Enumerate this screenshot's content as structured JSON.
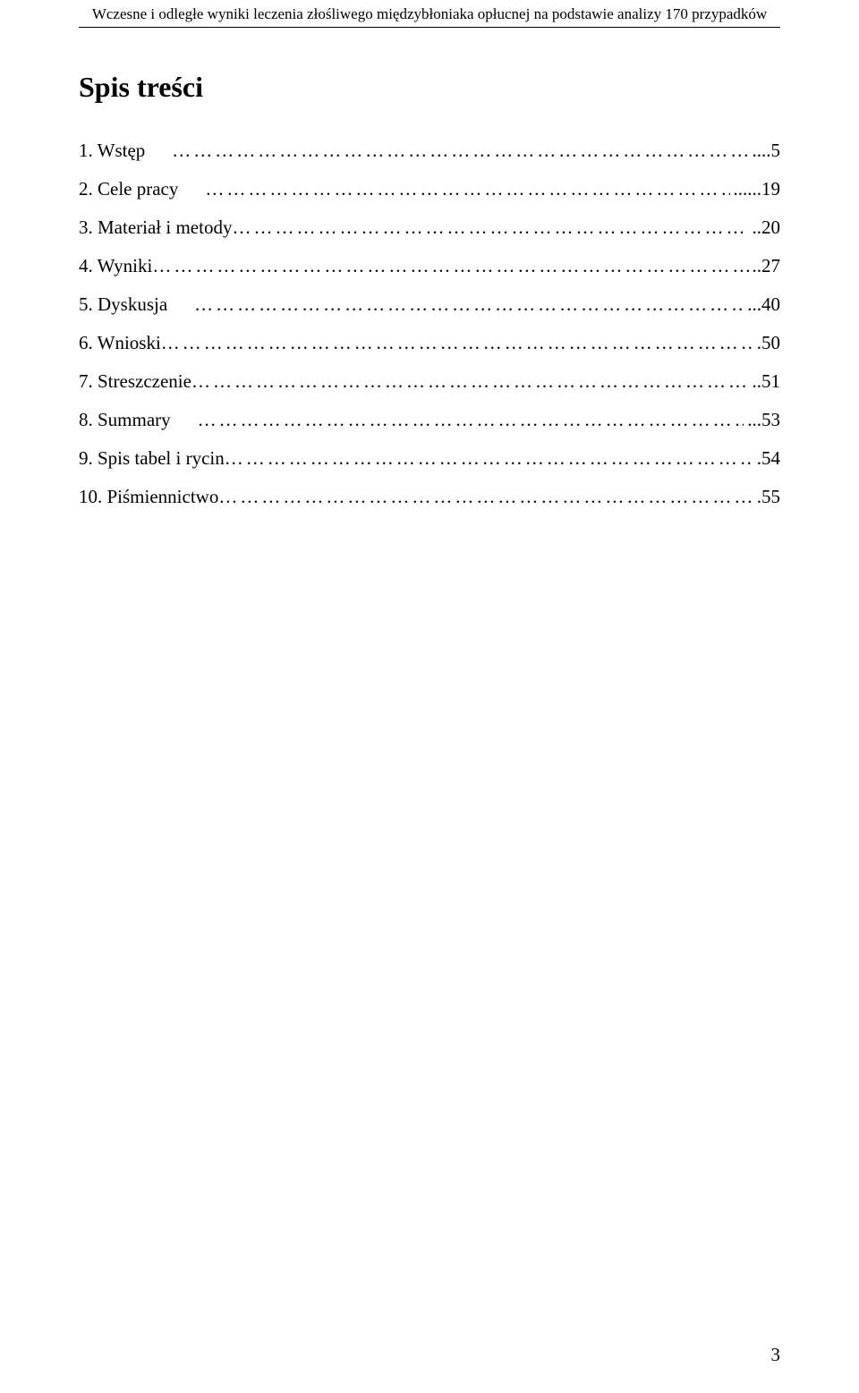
{
  "header": "Wczesne i odległe wyniki leczenia złośliwego międzybłoniaka opłucnej na podstawie analizy 170 przypadków",
  "title": "Spis treści",
  "toc": [
    {
      "label": "1.  Wstęp",
      "page_suffix": "....5"
    },
    {
      "label": "2.  Cele pracy",
      "page_suffix": "......19"
    },
    {
      "label": "3.  Materiał i metody",
      "page_suffix": "..20"
    },
    {
      "label": "4.  Wyniki",
      "page_suffix": "..27"
    },
    {
      "label": "5.  Dyskusja",
      "page_suffix": "...40"
    },
    {
      "label": "6.  Wnioski",
      "page_suffix": ".50"
    },
    {
      "label": "7.  Streszczenie",
      "page_suffix": "..51"
    },
    {
      "label": "8.  Summary",
      "page_suffix": "...53"
    },
    {
      "label": "9.  Spis tabel i rycin",
      "page_suffix": ".54"
    },
    {
      "label": "10. Piśmiennictwo",
      "page_suffix": ".55"
    }
  ],
  "page_number": "3",
  "toc_layout": {
    "rows_with_gap": [
      0,
      1,
      4,
      7
    ]
  }
}
